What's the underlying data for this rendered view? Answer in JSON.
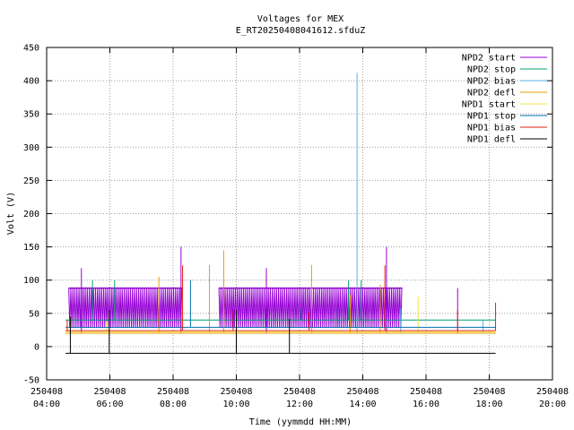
{
  "chart_data": {
    "type": "line",
    "title": "Voltages for MEX",
    "subtitle": "E_RT20250408041612.sfduZ",
    "xlabel": "Time (yymmdd HH:MM)",
    "ylabel": "Volt (V)",
    "grid": true,
    "legend_position": "top-right",
    "xlim": [
      "2025-04-08 04:00",
      "2025-04-08 20:00"
    ],
    "ylim": [
      -50,
      450
    ],
    "y_ticks": [
      "-50",
      "0",
      "50",
      "100",
      "150",
      "200",
      "250",
      "300",
      "350",
      "400",
      "450"
    ],
    "x_ticks": [
      {
        "line1": "250408",
        "line2": "04:00",
        "hour": 4
      },
      {
        "line1": "250408",
        "line2": "06:00",
        "hour": 6
      },
      {
        "line1": "250408",
        "line2": "08:00",
        "hour": 8
      },
      {
        "line1": "250408",
        "line2": "10:00",
        "hour": 10
      },
      {
        "line1": "250408",
        "line2": "12:00",
        "hour": 12
      },
      {
        "line1": "250408",
        "line2": "14:00",
        "hour": 14
      },
      {
        "line1": "250408",
        "line2": "16:00",
        "hour": 16
      },
      {
        "line1": "250408",
        "line2": "18:00",
        "hour": 18
      },
      {
        "line1": "250408",
        "line2": "20:00",
        "hour": 20
      }
    ],
    "series": [
      {
        "name": "NPD2 start",
        "color": "#9400d3",
        "base": 20,
        "bands": [
          {
            "from": 4.7,
            "to": 8.3,
            "low": 28,
            "high": 88,
            "step": 0.065
          },
          {
            "from": 9.45,
            "to": 15.25,
            "low": 28,
            "high": 88,
            "step": 0.065
          }
        ],
        "spikes": [
          [
            5.1,
            118
          ],
          [
            8.25,
            150
          ],
          [
            10.95,
            118
          ],
          [
            14.75,
            150
          ],
          [
            17.0,
            88
          ]
        ]
      },
      {
        "name": "NPD2 stop",
        "color": "#009e73",
        "base": 40,
        "x": [
          4.6,
          18.2
        ],
        "spikes": [
          [
            5.45,
            100
          ],
          [
            6.15,
            100
          ],
          [
            12.05,
            58
          ],
          [
            13.55,
            100
          ],
          [
            13.95,
            100
          ]
        ]
      },
      {
        "name": "NPD2 bias",
        "color": "#56b4e9",
        "base": 20,
        "x": [
          4.6,
          18.2
        ],
        "spikes": [
          [
            13.82,
            412
          ],
          [
            15.2,
            58
          ],
          [
            17.8,
            40
          ]
        ]
      },
      {
        "name": "NPD2 defl",
        "color": "#e69f00",
        "base": 20,
        "x": [
          4.6,
          18.2
        ],
        "spikes": [
          [
            7.55,
            105
          ],
          [
            9.15,
            123
          ],
          [
            9.6,
            145
          ],
          [
            12.38,
            123
          ],
          [
            13.6,
            78
          ],
          [
            14.55,
            93
          ]
        ]
      },
      {
        "name": "NPD1 start",
        "color": "#f0e442",
        "base": 22,
        "x": [
          4.6,
          18.2
        ],
        "spikes": [
          [
            15.75,
            75
          ],
          [
            5.9,
            38
          ]
        ]
      },
      {
        "name": "NPD1 stop",
        "color": "#0072b2",
        "base": 29,
        "x": [
          4.6,
          18.2
        ],
        "spikes": [
          [
            8.55,
            100
          ],
          [
            13.2,
            58
          ]
        ]
      },
      {
        "name": "NPD1 bias",
        "color": "#e51e10",
        "base": 24,
        "x": [
          4.6,
          18.2
        ],
        "spikes": [
          [
            4.65,
            40
          ],
          [
            8.3,
            122
          ],
          [
            9.9,
            55
          ],
          [
            12.3,
            52
          ],
          [
            14.7,
            122
          ],
          [
            17.0,
            55
          ],
          [
            18.2,
            66
          ]
        ]
      },
      {
        "name": "NPD1 defl",
        "color": "#000000",
        "base": -10,
        "x": [
          4.6,
          18.2
        ],
        "spikes": [
          [
            4.75,
            45
          ],
          [
            5.98,
            55
          ],
          [
            10.0,
            55
          ],
          [
            11.68,
            42
          ]
        ]
      }
    ]
  }
}
